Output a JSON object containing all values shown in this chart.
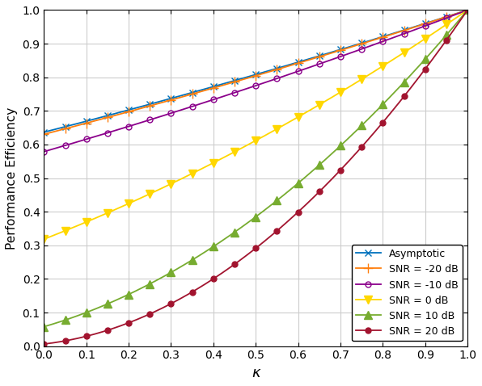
{
  "title": "",
  "xlabel": "κ",
  "ylabel": "Performance Efficiency",
  "xlim": [
    0,
    1
  ],
  "ylim": [
    0,
    1
  ],
  "xticks": [
    0,
    0.1,
    0.2,
    0.3,
    0.4,
    0.5,
    0.6,
    0.7,
    0.8,
    0.9,
    1.0
  ],
  "yticks": [
    0,
    0.1,
    0.2,
    0.3,
    0.4,
    0.5,
    0.6,
    0.7,
    0.8,
    0.9,
    1.0
  ],
  "series": [
    {
      "label": "Asymptotic",
      "color": "#0072BD",
      "marker": "x",
      "marker_size": 6,
      "snr_db": null,
      "open_marker": false
    },
    {
      "label": "SNR = -20 dB",
      "color": "#FF7F0E",
      "marker": "+",
      "marker_size": 8,
      "snr_db": -20,
      "open_marker": false
    },
    {
      "label": "SNR = -10 dB",
      "color": "#8B008B",
      "marker": "o",
      "marker_size": 5,
      "snr_db": -10,
      "open_marker": true
    },
    {
      "label": "SNR = 0 dB",
      "color": "#FFD700",
      "marker": "v",
      "marker_size": 7,
      "snr_db": 0,
      "open_marker": false
    },
    {
      "label": "SNR = 10 dB",
      "color": "#77AC30",
      "marker": "^",
      "marker_size": 7,
      "snr_db": 10,
      "open_marker": false
    },
    {
      "label": "SNR = 20 dB",
      "color": "#A2142F",
      "marker": "o",
      "marker_size": 5,
      "snr_db": 20,
      "open_marker": false
    }
  ],
  "n_points": 201,
  "marker_every": 10,
  "background_color": "#FFFFFF",
  "grid_color": "#CCCCCC"
}
